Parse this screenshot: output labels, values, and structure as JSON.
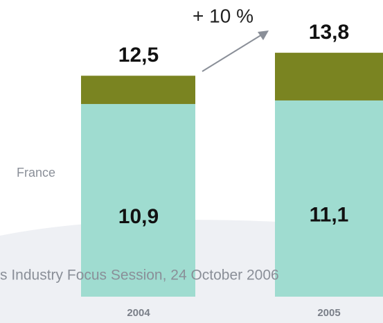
{
  "chart_data": {
    "type": "stacked_bar",
    "categories": [
      "2004",
      "2005"
    ],
    "series": [
      {
        "name": "France",
        "color": "#9fdcd0",
        "values": [
          10.9,
          11.1
        ],
        "value_labels": [
          "10,9",
          "11,1"
        ]
      },
      {
        "color": "#7a8421",
        "values": [
          1.6,
          2.7
        ]
      }
    ],
    "totals": [
      12.5,
      13.8
    ],
    "total_labels": [
      "12,5",
      "13,8"
    ],
    "annotation": "+ 10 %",
    "footer": "s Industry Focus Session, 24 October 2006"
  }
}
